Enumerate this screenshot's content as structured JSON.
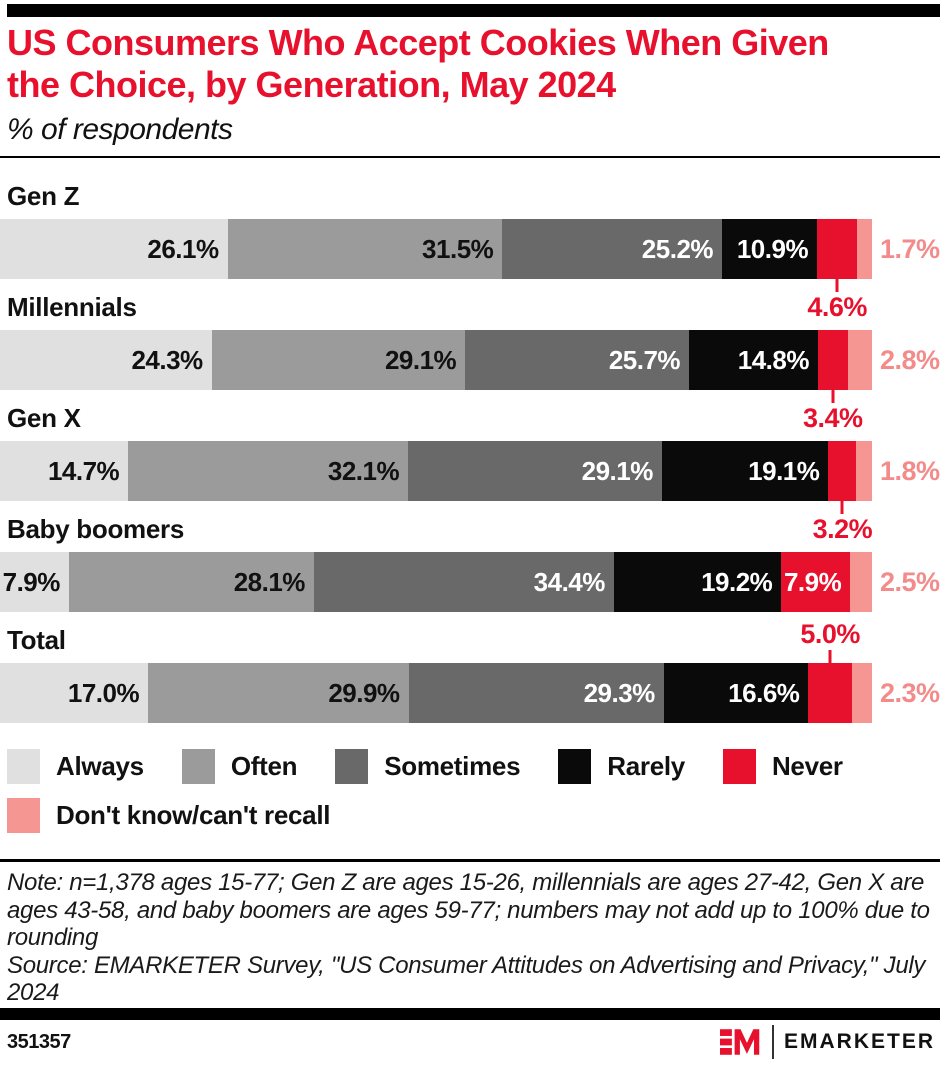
{
  "header": {
    "title": "US Consumers Who Accept Cookies When Given the Choice, by Generation, May 2024",
    "title_line1": "US Consumers Who Accept Cookies When Given",
    "title_line2": "the Choice, by Generation, May 2024",
    "subtitle": "% of respondents"
  },
  "chart_data": {
    "type": "bar",
    "stacked": true,
    "orientation": "horizontal",
    "title": "US Consumers Who Accept Cookies When Given the Choice, by Generation, May 2024",
    "subtitle": "% of respondents",
    "categories": [
      "Gen Z",
      "Millennials",
      "Gen X",
      "Baby boomers",
      "Total"
    ],
    "series": [
      {
        "name": "Always",
        "color": "#e0e0e0",
        "label_color": "#111111",
        "values": [
          26.1,
          24.3,
          14.7,
          7.9,
          17.0
        ]
      },
      {
        "name": "Often",
        "color": "#9b9b9b",
        "label_color": "#111111",
        "values": [
          31.5,
          29.1,
          32.1,
          28.1,
          29.9
        ]
      },
      {
        "name": "Sometimes",
        "color": "#696969",
        "label_color": "#ffffff",
        "values": [
          25.2,
          25.7,
          29.1,
          34.4,
          29.3
        ]
      },
      {
        "name": "Rarely",
        "color": "#0a0a0a",
        "label_color": "#ffffff",
        "values": [
          10.9,
          14.8,
          19.1,
          19.2,
          16.6
        ]
      },
      {
        "name": "Never",
        "color": "#e8112d",
        "label_color": "#ffffff",
        "values": [
          4.6,
          3.4,
          3.2,
          7.9,
          5.0
        ]
      },
      {
        "name": "Don't know/can't recall",
        "color": "#f59693",
        "label_color": "#f28b8a",
        "values": [
          1.7,
          2.8,
          1.8,
          2.5,
          2.3
        ]
      }
    ],
    "never_label_positions": [
      "below",
      "below",
      "below",
      "inside",
      "above"
    ],
    "value_suffix": "%",
    "xlim": [
      0,
      100
    ],
    "grid": false,
    "legend_position": "bottom"
  },
  "notes": {
    "note": "Note: n=1,378 ages 15-77; Gen Z are ages 15-26, millennials are ages 27-42, Gen X are ages 43-58, and baby boomers are ages 59-77; numbers may not add up to 100% due to rounding",
    "source": "Source: EMARKETER Survey, \"US Consumer Attitudes on Advertising and Privacy,\" July 2024"
  },
  "footer": {
    "chart_id": "351357",
    "brand": "EMARKETER"
  },
  "colors": {
    "accent_red": "#e8112d",
    "pink": "#f59693",
    "black_bar": "#000000"
  }
}
